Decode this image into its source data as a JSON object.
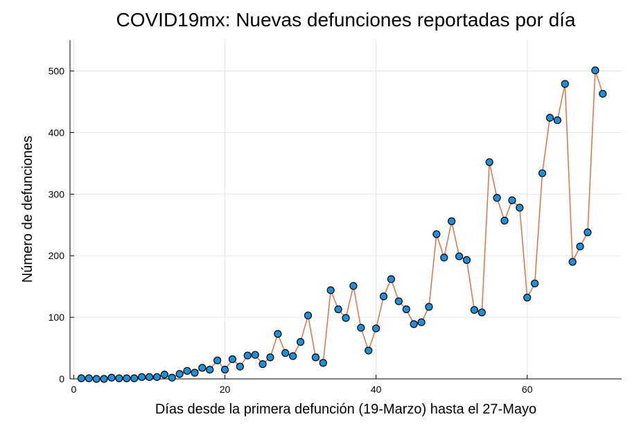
{
  "chart_data": {
    "type": "line",
    "title": "COVID19mx: Nuevas defunciones reportadas por día",
    "xlabel": "Días desde la primera defunción (19-Marzo) hasta el 27-Mayo",
    "ylabel": "Número de defunciones",
    "xlim": [
      -0.5,
      72.5
    ],
    "ylim": [
      0,
      550
    ],
    "xticks": [
      0,
      20,
      40,
      60
    ],
    "yticks": [
      0,
      100,
      200,
      300,
      400,
      500
    ],
    "grid": true,
    "legend": "none",
    "colors": {
      "line": "#e26f46",
      "marker": "#1f8fd6",
      "marker_edge": "#000000"
    },
    "x": [
      1,
      2,
      3,
      4,
      5,
      6,
      7,
      8,
      9,
      10,
      11,
      12,
      13,
      14,
      15,
      16,
      17,
      18,
      19,
      20,
      21,
      22,
      23,
      24,
      25,
      26,
      27,
      28,
      29,
      30,
      31,
      32,
      33,
      34,
      35,
      36,
      37,
      38,
      39,
      40,
      41,
      42,
      43,
      44,
      45,
      46,
      47,
      48,
      49,
      50,
      51,
      52,
      53,
      54,
      55,
      56,
      57,
      58,
      59,
      60,
      61,
      62,
      63,
      64,
      65,
      66,
      67,
      68,
      69,
      70
    ],
    "values": [
      1,
      1,
      0,
      0,
      2,
      1,
      1,
      1,
      3,
      3,
      3,
      7,
      2,
      8,
      13,
      10,
      18,
      15,
      30,
      15,
      32,
      20,
      38,
      39,
      24,
      35,
      73,
      42,
      37,
      60,
      103,
      35,
      26,
      144,
      113,
      99,
      151,
      83,
      46,
      82,
      134,
      162,
      126,
      113,
      89,
      92,
      117,
      235,
      197,
      256,
      199,
      193,
      112,
      108,
      352,
      294,
      257,
      290,
      278,
      132,
      155,
      334,
      424,
      420,
      479,
      190,
      215,
      238,
      501,
      463
    ]
  }
}
